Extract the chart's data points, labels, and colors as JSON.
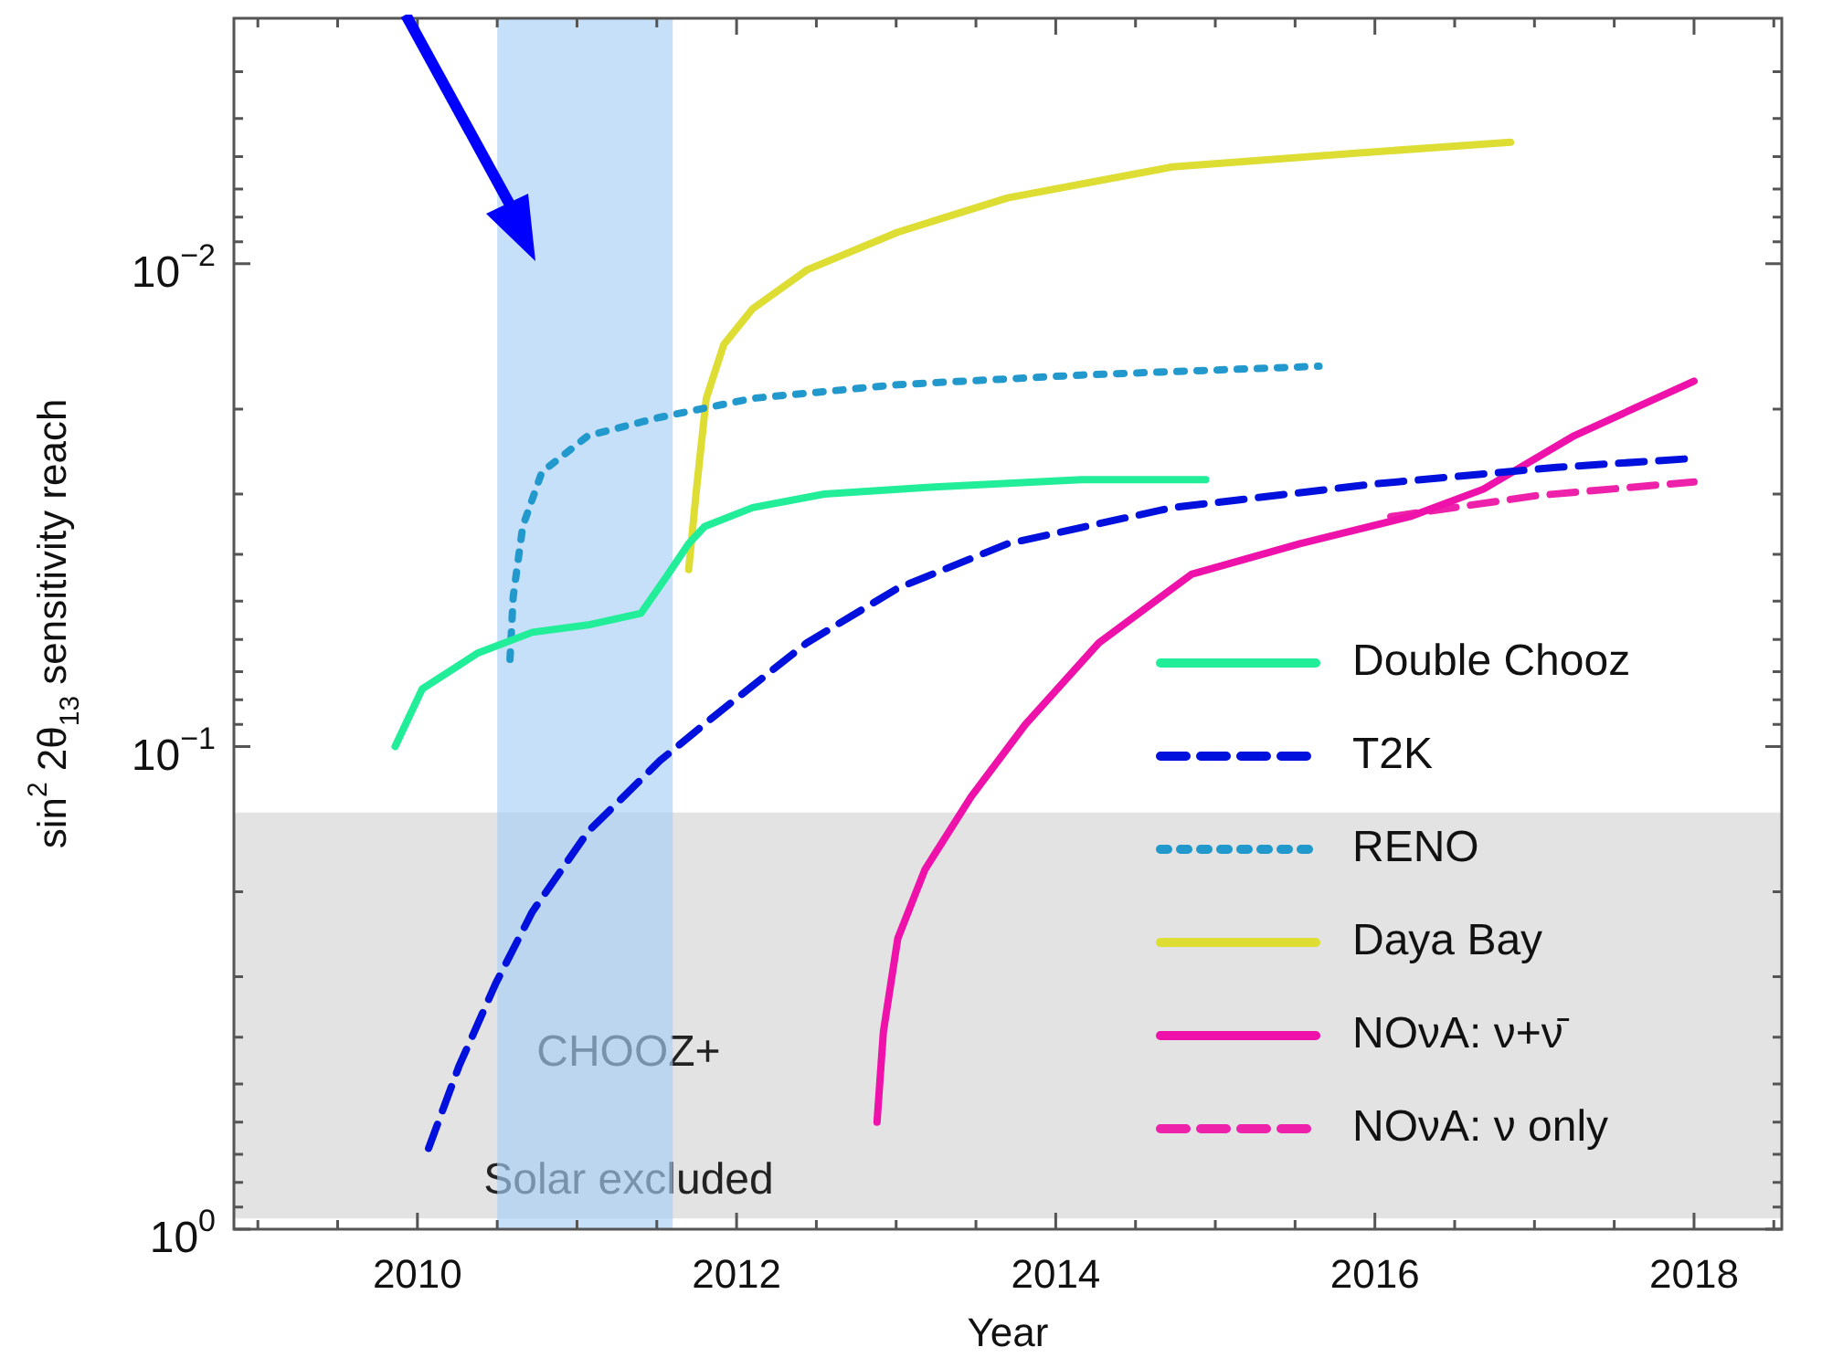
{
  "chart_data": {
    "type": "line",
    "xlabel": "Year",
    "ylabel": "sin$^{2}$ 2θ$_{13}$ sensitivity reach",
    "log": "y",
    "grid": false,
    "legend": "bottom right",
    "xlim": [
      2008.85,
      2018.55
    ],
    "ylim": [
      1,
      0.0031
    ],
    "xticks": [
      {
        "value": 2009,
        "label": null
      },
      {
        "value": 2009.5,
        "label": null
      },
      2010,
      {
        "value": 2010.5,
        "label": null
      },
      {
        "value": 2011,
        "label": null
      },
      {
        "value": 2011.5,
        "label": null
      },
      2012,
      {
        "value": 2012.5,
        "label": null
      },
      {
        "value": 2013,
        "label": null
      },
      {
        "value": 2013.5,
        "label": null
      },
      2014,
      {
        "value": 2014.5,
        "label": null
      },
      {
        "value": 2015,
        "label": null
      },
      {
        "value": 2015.5,
        "label": null
      },
      2016,
      {
        "value": 2016.5,
        "label": null
      },
      {
        "value": 2017,
        "label": null
      },
      {
        "value": 2017.5,
        "label": null
      },
      2018,
      {
        "value": 2018.5,
        "label": null
      }
    ],
    "yticks": [
      {
        "value": 1,
        "label": "10$^{0}$"
      },
      {
        "value": 0.9,
        "label": null
      },
      {
        "value": 0.8,
        "label": null
      },
      {
        "value": 0.7,
        "label": null
      },
      {
        "value": 0.6,
        "label": null
      },
      {
        "value": 0.5,
        "label": null
      },
      {
        "value": 0.4,
        "label": null
      },
      {
        "value": 0.3,
        "label": null
      },
      {
        "value": 0.2,
        "label": null
      },
      {
        "value": 0.1,
        "label": "10$^{−1}$"
      },
      {
        "value": 0.09,
        "label": null
      },
      {
        "value": 0.08,
        "label": null
      },
      {
        "value": 0.07,
        "label": null
      },
      {
        "value": 0.06,
        "label": null
      },
      {
        "value": 0.05,
        "label": null
      },
      {
        "value": 0.04,
        "label": null
      },
      {
        "value": 0.03,
        "label": null
      },
      {
        "value": 0.02,
        "label": null
      },
      {
        "value": 0.01,
        "label": "10$^{−2}$"
      },
      {
        "value": 0.009,
        "label": null
      },
      {
        "value": 0.008,
        "label": null
      },
      {
        "value": 0.007,
        "label": null
      },
      {
        "value": 0.006,
        "label": null
      },
      {
        "value": 0.005,
        "label": null
      },
      {
        "value": 0.004,
        "label": null
      }
    ],
    "bands": [
      {
        "axis": "y",
        "from": 0.95,
        "to": 0.137,
        "label": "CHOOZ+\nSolar excluded",
        "color": "#e3e3e3"
      },
      {
        "axis": "x",
        "from": 2010.5,
        "to": 2011.6,
        "color": "#a8d0f8"
      }
    ],
    "series": [
      {
        "name": "Double Chooz",
        "color": "#22ee99",
        "line_style": "solid",
        "x": [
          2009.86,
          2010.03,
          2010.38,
          2010.72,
          2011.07,
          2011.4,
          2011.55,
          2011.7,
          2011.8,
          2012.1,
          2012.55,
          2013.24,
          2014.16,
          2014.94
        ],
        "values": [
          0.1,
          0.076,
          0.064,
          0.058,
          0.056,
          0.053,
          0.045,
          0.038,
          0.035,
          0.032,
          0.03,
          0.029,
          0.028,
          0.028
        ]
      },
      {
        "name": "T2K",
        "color": "#0010dd",
        "line_style": "dashed",
        "x": [
          2010.07,
          2010.26,
          2010.49,
          2010.72,
          2011.07,
          2011.52,
          2011.87,
          2012.44,
          2013.01,
          2013.7,
          2014.73,
          2015.99,
          2017.14,
          2018
        ],
        "values": [
          0.68,
          0.46,
          0.31,
          0.22,
          0.15,
          0.107,
          0.086,
          0.061,
          0.047,
          0.038,
          0.032,
          0.0286,
          0.0264,
          0.0253
        ]
      },
      {
        "name": "RENO",
        "color": "#2299cc",
        "line_style": "dotted",
        "x": [
          2010.58,
          2010.6,
          2010.66,
          2010.78,
          2011.07,
          2011.52,
          2012.1,
          2013.01,
          2014.16,
          2015.65
        ],
        "values": [
          0.066,
          0.049,
          0.035,
          0.027,
          0.0227,
          0.0208,
          0.019,
          0.0178,
          0.017,
          0.0163
        ]
      },
      {
        "name": "Daya Bay",
        "color": "#dddd33",
        "line_style": "solid",
        "x": [
          2011.7,
          2011.75,
          2011.81,
          2011.92,
          2012.1,
          2012.44,
          2013.01,
          2013.7,
          2014.73,
          2015.88,
          2016.85
        ],
        "values": [
          0.043,
          0.029,
          0.019,
          0.0147,
          0.0124,
          0.0103,
          0.0086,
          0.0073,
          0.0063,
          0.0059,
          0.0056
        ]
      },
      {
        "name": "NOνA: ν+ν̄",
        "color": "#ee11aa",
        "line_style": "solid",
        "x": [
          2012.88,
          2012.92,
          2013.01,
          2013.18,
          2013.47,
          2013.81,
          2014.27,
          2014.85,
          2015.53,
          2016.22,
          2016.68,
          2017.25,
          2018
        ],
        "values": [
          0.6,
          0.39,
          0.25,
          0.18,
          0.127,
          0.09,
          0.061,
          0.044,
          0.038,
          0.0334,
          0.0293,
          0.0227,
          0.0175
        ]
      },
      {
        "name": "NOνA: ν only",
        "color": "#ee22aa",
        "line_style": "dashed",
        "x": [
          2016.1,
          2017.02,
          2018
        ],
        "values": [
          0.0334,
          0.0302,
          0.0283
        ]
      }
    ]
  }
}
